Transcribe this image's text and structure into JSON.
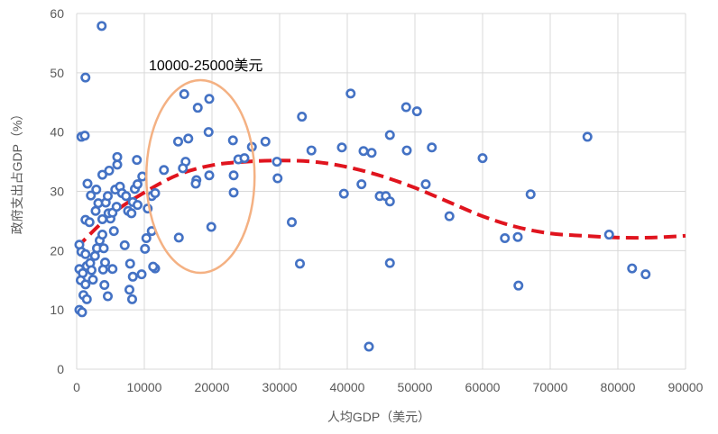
{
  "chart_data": {
    "type": "scatter",
    "xlabel": "人均GDP（美元）",
    "ylabel": "政府支出占GDP（%）",
    "xlim": [
      0,
      90000
    ],
    "ylim": [
      0,
      60
    ],
    "xticks": [
      "0",
      "10000",
      "20000",
      "30000",
      "40000",
      "50000",
      "60000",
      "70000",
      "80000",
      "90000"
    ],
    "yticks": [
      "0",
      "10",
      "20",
      "30",
      "40",
      "50",
      "60"
    ],
    "grid": true,
    "annotation": "10000-25000美元",
    "colors": {
      "points": "#4472c4",
      "trend": "#e0141e",
      "ellipse": "#f4b183",
      "grid": "#d9d9d9"
    },
    "points": [
      [
        3700,
        57.9
      ],
      [
        1300,
        49.2
      ],
      [
        700,
        39.2
      ],
      [
        1200,
        39.4
      ],
      [
        1600,
        31.3
      ],
      [
        2100,
        29.3
      ],
      [
        1300,
        25.2
      ],
      [
        1900,
        24.8
      ],
      [
        400,
        21
      ],
      [
        700,
        19.8
      ],
      [
        1300,
        19.4
      ],
      [
        400,
        16.9
      ],
      [
        900,
        16.2
      ],
      [
        600,
        15
      ],
      [
        1300,
        14.3
      ],
      [
        1000,
        12.5
      ],
      [
        1500,
        11.8
      ],
      [
        400,
        10
      ],
      [
        800,
        9.6
      ],
      [
        1500,
        17.4
      ],
      [
        2000,
        17.9
      ],
      [
        2200,
        16.7
      ],
      [
        2400,
        15.1
      ],
      [
        2700,
        19.1
      ],
      [
        3000,
        20.4
      ],
      [
        3400,
        21.7
      ],
      [
        3800,
        22.7
      ],
      [
        4000,
        20.4
      ],
      [
        4200,
        18
      ],
      [
        3900,
        16.8
      ],
      [
        4100,
        14.2
      ],
      [
        4600,
        12.3
      ],
      [
        5300,
        16.9
      ],
      [
        5500,
        23.3
      ],
      [
        5000,
        25.4
      ],
      [
        4700,
        26.3
      ],
      [
        3800,
        25.3
      ],
      [
        3200,
        28
      ],
      [
        2800,
        26.7
      ],
      [
        4300,
        28.1
      ],
      [
        4600,
        29.2
      ],
      [
        5300,
        26.4
      ],
      [
        5900,
        27.4
      ],
      [
        5700,
        30.3
      ],
      [
        6400,
        30.8
      ],
      [
        6700,
        29.7
      ],
      [
        7300,
        29.2
      ],
      [
        7600,
        26.7
      ],
      [
        8100,
        26.3
      ],
      [
        8300,
        28.2
      ],
      [
        8600,
        30.4
      ],
      [
        9000,
        31.2
      ],
      [
        9700,
        32.5
      ],
      [
        8900,
        35.3
      ],
      [
        6000,
        34.5
      ],
      [
        6000,
        35.8
      ],
      [
        4800,
        33.5
      ],
      [
        3800,
        32.8
      ],
      [
        2900,
        30.3
      ],
      [
        7100,
        20.9
      ],
      [
        7900,
        17.8
      ],
      [
        8300,
        15.6
      ],
      [
        7800,
        13.4
      ],
      [
        8200,
        11.8
      ],
      [
        9600,
        16
      ],
      [
        10100,
        20.3
      ],
      [
        10300,
        22.1
      ],
      [
        10500,
        27.1
      ],
      [
        11100,
        29.2
      ],
      [
        11600,
        29.7
      ],
      [
        11100,
        23.3
      ],
      [
        11600,
        17
      ],
      [
        11300,
        17.3
      ],
      [
        9000,
        27.7
      ],
      [
        12900,
        33.6
      ],
      [
        15000,
        38.4
      ],
      [
        15900,
        46.4
      ],
      [
        16500,
        38.9
      ],
      [
        16100,
        35
      ],
      [
        15700,
        33.9
      ],
      [
        17700,
        31.9
      ],
      [
        17600,
        31.3
      ],
      [
        19600,
        45.6
      ],
      [
        17900,
        44.1
      ],
      [
        19500,
        40
      ],
      [
        19600,
        32.7
      ],
      [
        15100,
        22.2
      ],
      [
        19900,
        24
      ],
      [
        23100,
        38.6
      ],
      [
        23200,
        32.7
      ],
      [
        23200,
        29.8
      ],
      [
        23900,
        35.4
      ],
      [
        24800,
        35.6
      ],
      [
        25900,
        37.5
      ],
      [
        27900,
        38.4
      ],
      [
        29600,
        35
      ],
      [
        29700,
        32.2
      ],
      [
        31800,
        24.8
      ],
      [
        33000,
        17.8
      ],
      [
        33300,
        42.6
      ],
      [
        34700,
        36.9
      ],
      [
        39200,
        37.4
      ],
      [
        39500,
        29.6
      ],
      [
        40500,
        46.5
      ],
      [
        42100,
        31.2
      ],
      [
        42400,
        36.8
      ],
      [
        43600,
        36.5
      ],
      [
        43200,
        3.8
      ],
      [
        44800,
        29.2
      ],
      [
        45700,
        29.2
      ],
      [
        46300,
        28.3
      ],
      [
        46300,
        39.5
      ],
      [
        46300,
        17.9
      ],
      [
        48700,
        44.2
      ],
      [
        48800,
        36.9
      ],
      [
        50300,
        43.5
      ],
      [
        51600,
        31.2
      ],
      [
        52500,
        37.4
      ],
      [
        55100,
        25.8
      ],
      [
        60000,
        35.6
      ],
      [
        63300,
        22.1
      ],
      [
        65200,
        22.3
      ],
      [
        65300,
        14.1
      ],
      [
        67100,
        29.5
      ],
      [
        75500,
        39.2
      ],
      [
        78700,
        22.7
      ],
      [
        82100,
        17
      ],
      [
        84100,
        16
      ]
    ],
    "trendline": [
      [
        0,
        20.5
      ],
      [
        5000,
        26
      ],
      [
        10000,
        29.8
      ],
      [
        15000,
        32.8
      ],
      [
        20000,
        34.4
      ],
      [
        25000,
        35
      ],
      [
        30000,
        35.2
      ],
      [
        35000,
        35
      ],
      [
        40000,
        34.1
      ],
      [
        45000,
        32.6
      ],
      [
        50000,
        30.6
      ],
      [
        55000,
        28.2
      ],
      [
        60000,
        25.8
      ],
      [
        65000,
        24
      ],
      [
        70000,
        22.9
      ],
      [
        75000,
        22.5
      ],
      [
        80000,
        22.2
      ],
      [
        85000,
        22.2
      ],
      [
        90000,
        22.5
      ]
    ]
  }
}
